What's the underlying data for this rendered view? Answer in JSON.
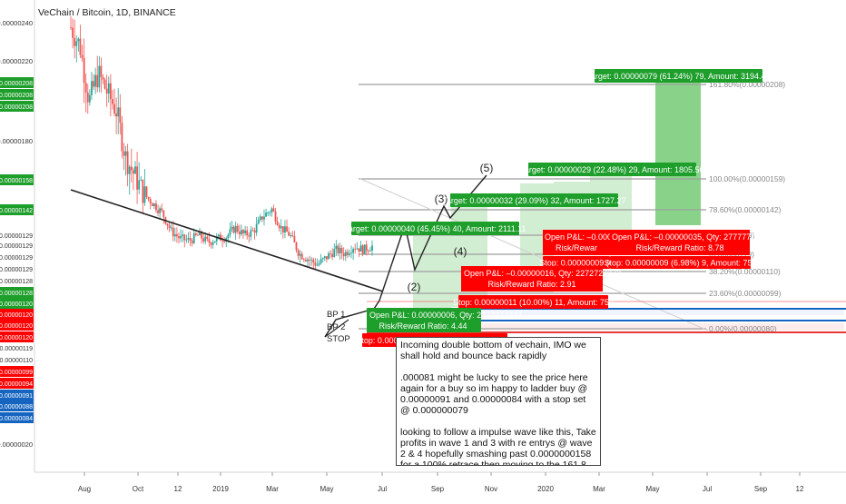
{
  "header": {
    "title": "VeChain / Bitcoin, 1D, BINANCE"
  },
  "colors": {
    "candle_up": "#26a69a",
    "candle_down": "#ef5350",
    "target_fill": "#cdeccd",
    "target_fill_strong": "#7ccd7c",
    "target_label": "#1e9e2b",
    "stop_label": "#ff0000",
    "blue_label": "#1565c0"
  },
  "chart_data": {
    "type": "candlestick",
    "symbol": "VeChain / Bitcoin",
    "interval": "1D",
    "exchange": "BINANCE",
    "x_ticks": [
      "Aug",
      "Oct",
      "12",
      "2019",
      "Mar",
      "May",
      "Jul",
      "Sep",
      "Nov",
      "2020",
      "Mar",
      "May",
      "Jul",
      "Sep",
      "12"
    ],
    "y_ticks": [
      "0.00000240",
      "0.00000220",
      "0.00000180",
      "0.00000020"
    ],
    "price_path": [
      [
        0,
        240
      ],
      [
        3,
        230
      ],
      [
        6,
        200
      ],
      [
        9,
        215
      ],
      [
        12,
        205
      ],
      [
        14,
        195
      ],
      [
        16,
        170
      ],
      [
        18,
        160
      ],
      [
        20,
        150
      ],
      [
        22,
        145
      ],
      [
        24,
        140
      ],
      [
        26,
        130
      ],
      [
        28,
        126
      ],
      [
        30,
        125
      ],
      [
        32,
        128
      ],
      [
        34,
        124
      ],
      [
        36,
        126
      ],
      [
        38,
        127
      ],
      [
        40,
        132
      ],
      [
        42,
        128
      ],
      [
        44,
        130
      ],
      [
        46,
        138
      ],
      [
        48,
        142
      ],
      [
        50,
        132
      ],
      [
        52,
        128
      ],
      [
        54,
        118
      ],
      [
        56,
        115
      ],
      [
        58,
        112
      ],
      [
        60,
        116
      ],
      [
        62,
        120
      ],
      [
        64,
        118
      ],
      [
        66,
        122
      ],
      [
        68,
        120
      ],
      [
        70,
        122
      ]
    ],
    "price_axis_labels": [
      {
        "text": "0.00000208",
        "color": "#1e9e2b"
      },
      {
        "text": "0.00000208",
        "color": "#1e9e2b"
      },
      {
        "text": "0.00000208",
        "color": "#1e9e2b"
      },
      {
        "text": "0.00000158",
        "color": "#1e9e2b"
      },
      {
        "text": "0.00000142",
        "color": "#1e9e2b"
      },
      {
        "text": "0.00000129",
        "color": "#888888"
      },
      {
        "text": "0.00000129",
        "color": "#888888"
      },
      {
        "text": "0.00000129",
        "color": "#888888"
      },
      {
        "text": "0.00000129",
        "color": "#888888"
      },
      {
        "text": "0.00000128",
        "color": "#888888"
      },
      {
        "text": "0.00000128",
        "color": "#1e9e2b"
      },
      {
        "text": "0.00000120",
        "color": "#1e9e2b"
      },
      {
        "text": "0.00000120",
        "color": "#ff0000"
      },
      {
        "text": "0.00000120",
        "color": "#ff0000"
      },
      {
        "text": "0.00000120",
        "color": "#ff0000"
      },
      {
        "text": "0.00000119",
        "color": "#888888"
      },
      {
        "text": "0.00000110",
        "color": "#888888"
      },
      {
        "text": "0.00000099",
        "color": "#ff0000"
      },
      {
        "text": "0.00000094",
        "color": "#ff0000"
      },
      {
        "text": "0.00000091",
        "color": "#1565c0"
      },
      {
        "text": "0.00000088",
        "color": "#1565c0"
      },
      {
        "text": "0.00000084",
        "color": "#1565c0"
      },
      {
        "text": "0.00000079",
        "color": "#ff0000"
      },
      {
        "text": "0.00000079",
        "color": "#ff0000"
      }
    ],
    "fib_levels": [
      {
        "label": "161.80%(0.00000208)",
        "ratio": 1.618,
        "price": 2.08e-06
      },
      {
        "label": "100.00%(0.00000159)",
        "ratio": 1.0,
        "price": 1.59e-06
      },
      {
        "label": "78.60%(0.00000142)",
        "ratio": 0.786,
        "price": 1.42e-06
      },
      {
        "label": "(0.00000129)",
        "ratio": 0.618,
        "price": 1.29e-06
      },
      {
        "label": "(0.00000119)",
        "ratio": 0.5,
        "price": 1.19e-06
      },
      {
        "label": "38.20%(0.00000110)",
        "ratio": 0.382,
        "price": 1.1e-06
      },
      {
        "label": "23.60%(0.00000099)",
        "ratio": 0.236,
        "price": 9.9e-07
      },
      {
        "label": "0.00%(0.00000080)",
        "ratio": 0.0,
        "price": 8e-07
      }
    ],
    "wave_labels": [
      "(2)",
      "(3)",
      "(4)",
      "(5)"
    ],
    "entry_labels": [
      "BP 1",
      "BP 2",
      "STOP"
    ],
    "targets": [
      {
        "text": "Target: 0.00000079 (61.24%) 79, Amount: 3194.44"
      },
      {
        "text": "Target: 0.00000029 (22.48%) 29, Amount: 1805.56"
      },
      {
        "text": "Target: 0.00000032 (29.09%) 32, Amount: 1727.27"
      },
      {
        "text": "Target: 0.00000040 (45.45%) 40, Amount: 2111.11"
      }
    ],
    "positions": [
      {
        "pnl": "Open P&L: –0.0000006",
        "rr": "Risk/Rewar"
      },
      {
        "pnl": "Open P&L: –0.00000035, Qty: 2777777777",
        "rr": "Risk/Reward Ratio: 8.78"
      },
      {
        "pnl": "Open P&L: –0.00000016, Qty: 2272727272",
        "rr": "Risk/Reward Ratio: 2.91"
      },
      {
        "pnl": "Open P&L: 0.00000006, Qty: 2777777777",
        "rr": "Risk/Reward Ratio: 4.44"
      }
    ],
    "stops": [
      {
        "text": "Stop: 0.00000009 (6"
      },
      {
        "text": "Stop: 0.00000009 (6.98%) 9, Amount: 750"
      },
      {
        "text": "Stop: 0.00000011 (10.00%) 11, Amount: 750"
      },
      {
        "text": "Stop: 0.00000009 (10.23%) 9, Amount: 750"
      }
    ]
  },
  "note": {
    "paragraphs": [
      "Incoming double bottom of vechain, IMO we shall hold and bounce back rapidly",
      ".000081 might be lucky to see the price here again for a buy so im happy to ladder buy @ 0.00000091 and 0.00000084 with a stop set @ 0.000000079",
      "looking to follow a impulse wave like this, Take profits in wave 1 and 3 with re entrys @ wave 2 & 4 hopefully smashing past 0.0000000158 for a 100% retrace then moving to  the 161.8"
    ]
  }
}
